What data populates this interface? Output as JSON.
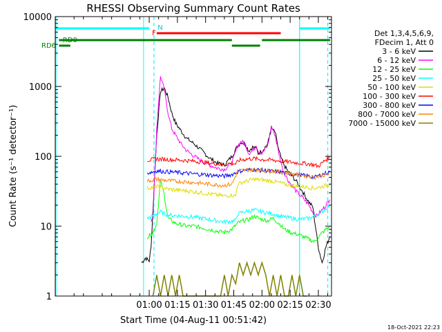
{
  "chart_data": {
    "type": "line",
    "title": "RHESSI Observing Summary Count Rates",
    "xlabel": "Start Time (04-Aug-11 00:51:42)",
    "ylabel": "Count Rate (s⁻¹ detector⁻¹)",
    "yscale": "log",
    "ylim": [
      1,
      10000
    ],
    "xlim_minutes": [
      -50,
      97
    ],
    "x_ticks": [
      "01:00",
      "01:15",
      "01:30",
      "01:45",
      "02:00",
      "02:15",
      "02:30"
    ],
    "x_tick_minutes": [
      0,
      15,
      30,
      45,
      60,
      75,
      90
    ],
    "y_ticks": [
      "1",
      "10",
      "100",
      "1000",
      "10000"
    ],
    "y_tick_values": [
      1,
      10,
      100,
      1000,
      10000
    ],
    "legend_position": "right",
    "legend_header": [
      "Det 1,3,4,5,6,9,",
      "FDecim 1, Att 0"
    ],
    "footer_date": "18-Oct-2021 22:23",
    "annotations": {
      "flare_label": "F",
      "night_label": "N",
      "rd0_label": "RD0",
      "rd6_label": "RD6"
    },
    "series": [
      {
        "name": "3 - 6 keV",
        "color": "#000000",
        "points": [
          [
            -4,
            3
          ],
          [
            -2,
            3.5
          ],
          [
            0,
            3.2
          ],
          [
            1,
            5
          ],
          [
            4,
            200
          ],
          [
            6,
            850
          ],
          [
            8,
            950
          ],
          [
            10,
            700
          ],
          [
            12,
            420
          ],
          [
            14,
            300
          ],
          [
            17,
            230
          ],
          [
            20,
            180
          ],
          [
            24,
            150
          ],
          [
            28,
            120
          ],
          [
            32,
            95
          ],
          [
            36,
            80
          ],
          [
            40,
            75
          ],
          [
            44,
            100
          ],
          [
            47,
            140
          ],
          [
            49,
            160
          ],
          [
            51,
            150
          ],
          [
            53,
            120
          ],
          [
            55,
            135
          ],
          [
            57,
            130
          ],
          [
            58,
            110
          ],
          [
            60,
            120
          ],
          [
            63,
            150
          ],
          [
            65,
            250
          ],
          [
            67,
            220
          ],
          [
            69,
            120
          ],
          [
            71,
            80
          ],
          [
            74,
            60
          ],
          [
            78,
            45
          ],
          [
            82,
            30
          ],
          [
            85,
            22
          ],
          [
            87,
            19
          ],
          [
            90,
            5
          ],
          [
            92,
            3
          ],
          [
            94,
            5
          ],
          [
            96,
            7
          ]
        ]
      },
      {
        "name": "6 - 12 keV",
        "color": "#ff00ff",
        "points": [
          [
            1,
            12
          ],
          [
            2,
            14
          ],
          [
            4,
            250
          ],
          [
            6,
            1400
          ],
          [
            8,
            900
          ],
          [
            10,
            420
          ],
          [
            12,
            250
          ],
          [
            14,
            200
          ],
          [
            17,
            150
          ],
          [
            20,
            120
          ],
          [
            24,
            100
          ],
          [
            28,
            85
          ],
          [
            32,
            75
          ],
          [
            36,
            68
          ],
          [
            40,
            65
          ],
          [
            44,
            80
          ],
          [
            47,
            140
          ],
          [
            49,
            165
          ],
          [
            51,
            150
          ],
          [
            53,
            110
          ],
          [
            55,
            120
          ],
          [
            57,
            145
          ],
          [
            58,
            120
          ],
          [
            60,
            110
          ],
          [
            63,
            140
          ],
          [
            65,
            270
          ],
          [
            67,
            200
          ],
          [
            69,
            110
          ],
          [
            71,
            65
          ],
          [
            74,
            45
          ],
          [
            78,
            32
          ],
          [
            82,
            25
          ],
          [
            85,
            20
          ],
          [
            87,
            16
          ],
          [
            89,
            14
          ],
          [
            92,
            17
          ],
          [
            94,
            20
          ],
          [
            96,
            24
          ]
        ]
      },
      {
        "name": "12 - 25 keV",
        "color": "#00ff00",
        "points": [
          [
            -1,
            7
          ],
          [
            2,
            8
          ],
          [
            4,
            11
          ],
          [
            6,
            45
          ],
          [
            8,
            28
          ],
          [
            10,
            13
          ],
          [
            14,
            11
          ],
          [
            20,
            10
          ],
          [
            24,
            10
          ],
          [
            28,
            9.5
          ],
          [
            32,
            9
          ],
          [
            36,
            8.5
          ],
          [
            40,
            8.2
          ],
          [
            44,
            9
          ],
          [
            47,
            11
          ],
          [
            50,
            12
          ],
          [
            53,
            12.5
          ],
          [
            56,
            14
          ],
          [
            58,
            13
          ],
          [
            60,
            12.5
          ],
          [
            63,
            12
          ],
          [
            66,
            13
          ],
          [
            69,
            11
          ],
          [
            72,
            9
          ],
          [
            76,
            8
          ],
          [
            80,
            7.5
          ],
          [
            85,
            6.5
          ],
          [
            88,
            6
          ],
          [
            92,
            8
          ],
          [
            96,
            10
          ]
        ]
      },
      {
        "name": "25 - 50 keV",
        "color": "#00ffff",
        "points": [
          [
            -1,
            13
          ],
          [
            2,
            14
          ],
          [
            4,
            15
          ],
          [
            6,
            16
          ],
          [
            8,
            15
          ],
          [
            10,
            14.5
          ],
          [
            14,
            14.2
          ],
          [
            20,
            13.8
          ],
          [
            24,
            13.5
          ],
          [
            28,
            13
          ],
          [
            32,
            12.5
          ],
          [
            36,
            12
          ],
          [
            40,
            11.5
          ],
          [
            44,
            11.8
          ],
          [
            46,
            12
          ],
          [
            47,
            15
          ],
          [
            50,
            16
          ],
          [
            53,
            16.5
          ],
          [
            56,
            17
          ],
          [
            58,
            16.5
          ],
          [
            60,
            16
          ],
          [
            63,
            15.5
          ],
          [
            66,
            15
          ],
          [
            69,
            14
          ],
          [
            72,
            13.5
          ],
          [
            76,
            13
          ],
          [
            80,
            12.5
          ],
          [
            85,
            13
          ],
          [
            88,
            14
          ],
          [
            92,
            16
          ],
          [
            96,
            20
          ]
        ]
      },
      {
        "name": "50 - 100 keV",
        "color": "#dddd00",
        "points": [
          [
            -1,
            35
          ],
          [
            2,
            36
          ],
          [
            4,
            37
          ],
          [
            6,
            36
          ],
          [
            10,
            34
          ],
          [
            14,
            33
          ],
          [
            20,
            32
          ],
          [
            24,
            31
          ],
          [
            28,
            30
          ],
          [
            32,
            29
          ],
          [
            36,
            28
          ],
          [
            40,
            27
          ],
          [
            44,
            28
          ],
          [
            46,
            27
          ],
          [
            47,
            40
          ],
          [
            50,
            43
          ],
          [
            53,
            45
          ],
          [
            56,
            47
          ],
          [
            58,
            46
          ],
          [
            60,
            46
          ],
          [
            63,
            45
          ],
          [
            66,
            44
          ],
          [
            69,
            42
          ],
          [
            72,
            40
          ],
          [
            76,
            38
          ],
          [
            80,
            37
          ],
          [
            85,
            36
          ],
          [
            88,
            35
          ],
          [
            92,
            37
          ],
          [
            96,
            40
          ]
        ]
      },
      {
        "name": "100 - 300 keV",
        "color": "#ff0000",
        "points": [
          [
            -1,
            88
          ],
          [
            2,
            90
          ],
          [
            4,
            92
          ],
          [
            6,
            91
          ],
          [
            10,
            90
          ],
          [
            14,
            89
          ],
          [
            20,
            87
          ],
          [
            24,
            85
          ],
          [
            28,
            83
          ],
          [
            32,
            80
          ],
          [
            36,
            78
          ],
          [
            40,
            76
          ],
          [
            44,
            80
          ],
          [
            46,
            78
          ],
          [
            48,
            88
          ],
          [
            50,
            90
          ],
          [
            53,
            92
          ],
          [
            56,
            93
          ],
          [
            58,
            91
          ],
          [
            60,
            90
          ],
          [
            63,
            89
          ],
          [
            66,
            88
          ],
          [
            69,
            86
          ],
          [
            72,
            84
          ],
          [
            76,
            82
          ],
          [
            80,
            80
          ],
          [
            85,
            78
          ],
          [
            88,
            75
          ],
          [
            90,
            72
          ],
          [
            92,
            80
          ],
          [
            94,
            90
          ],
          [
            96,
            95
          ]
        ]
      },
      {
        "name": "300 - 800 keV",
        "color": "#0000ff",
        "points": [
          [
            -1,
            58
          ],
          [
            2,
            60
          ],
          [
            4,
            62
          ],
          [
            6,
            61
          ],
          [
            10,
            60
          ],
          [
            14,
            59
          ],
          [
            20,
            57
          ],
          [
            24,
            56
          ],
          [
            28,
            55
          ],
          [
            32,
            54
          ],
          [
            36,
            53
          ],
          [
            40,
            52
          ],
          [
            44,
            55
          ],
          [
            47,
            60
          ],
          [
            50,
            63
          ],
          [
            53,
            64
          ],
          [
            56,
            65
          ],
          [
            58,
            64
          ],
          [
            60,
            63
          ],
          [
            63,
            62
          ],
          [
            66,
            61
          ],
          [
            69,
            60
          ],
          [
            72,
            58
          ],
          [
            76,
            56
          ],
          [
            80,
            54
          ],
          [
            85,
            52
          ],
          [
            88,
            50
          ],
          [
            92,
            55
          ],
          [
            96,
            60
          ]
        ]
      },
      {
        "name": "800 - 7000 keV",
        "color": "#ff8000",
        "points": [
          [
            -1,
            44
          ],
          [
            2,
            46
          ],
          [
            4,
            47
          ],
          [
            6,
            46
          ],
          [
            10,
            45
          ],
          [
            14,
            44
          ],
          [
            20,
            43
          ],
          [
            24,
            42
          ],
          [
            28,
            41
          ],
          [
            32,
            40
          ],
          [
            36,
            39
          ],
          [
            40,
            38.5
          ],
          [
            44,
            40
          ],
          [
            47,
            60
          ],
          [
            50,
            63
          ],
          [
            53,
            64
          ],
          [
            56,
            65
          ],
          [
            58,
            64
          ],
          [
            60,
            63
          ],
          [
            63,
            62
          ],
          [
            66,
            61
          ],
          [
            69,
            60
          ],
          [
            72,
            58
          ],
          [
            76,
            56
          ],
          [
            80,
            54
          ],
          [
            85,
            52
          ],
          [
            88,
            50
          ],
          [
            92,
            53
          ],
          [
            96,
            56
          ]
        ]
      },
      {
        "name": "7000 - 15000 keV",
        "color": "#808000",
        "points": [
          [
            2,
            1
          ],
          [
            4,
            2
          ],
          [
            6,
            1
          ],
          [
            8,
            2
          ],
          [
            10,
            1
          ],
          [
            12,
            2
          ],
          [
            14,
            1
          ],
          [
            16,
            2
          ],
          [
            18,
            1
          ],
          [
            22,
            1
          ],
          [
            30,
            1
          ],
          [
            36,
            1
          ],
          [
            38,
            1
          ],
          [
            40,
            2
          ],
          [
            42,
            1
          ],
          [
            44,
            2
          ],
          [
            46,
            1.5
          ],
          [
            48,
            3
          ],
          [
            50,
            2
          ],
          [
            52,
            3
          ],
          [
            54,
            2
          ],
          [
            56,
            3
          ],
          [
            58,
            2
          ],
          [
            60,
            3
          ],
          [
            62,
            2
          ],
          [
            64,
            1
          ],
          [
            66,
            2
          ],
          [
            68,
            1
          ],
          [
            70,
            2
          ],
          [
            72,
            1
          ],
          [
            74,
            1
          ],
          [
            76,
            2
          ],
          [
            78,
            1
          ],
          [
            80,
            2
          ],
          [
            82,
            1
          ],
          [
            84,
            1
          ]
        ]
      }
    ]
  }
}
